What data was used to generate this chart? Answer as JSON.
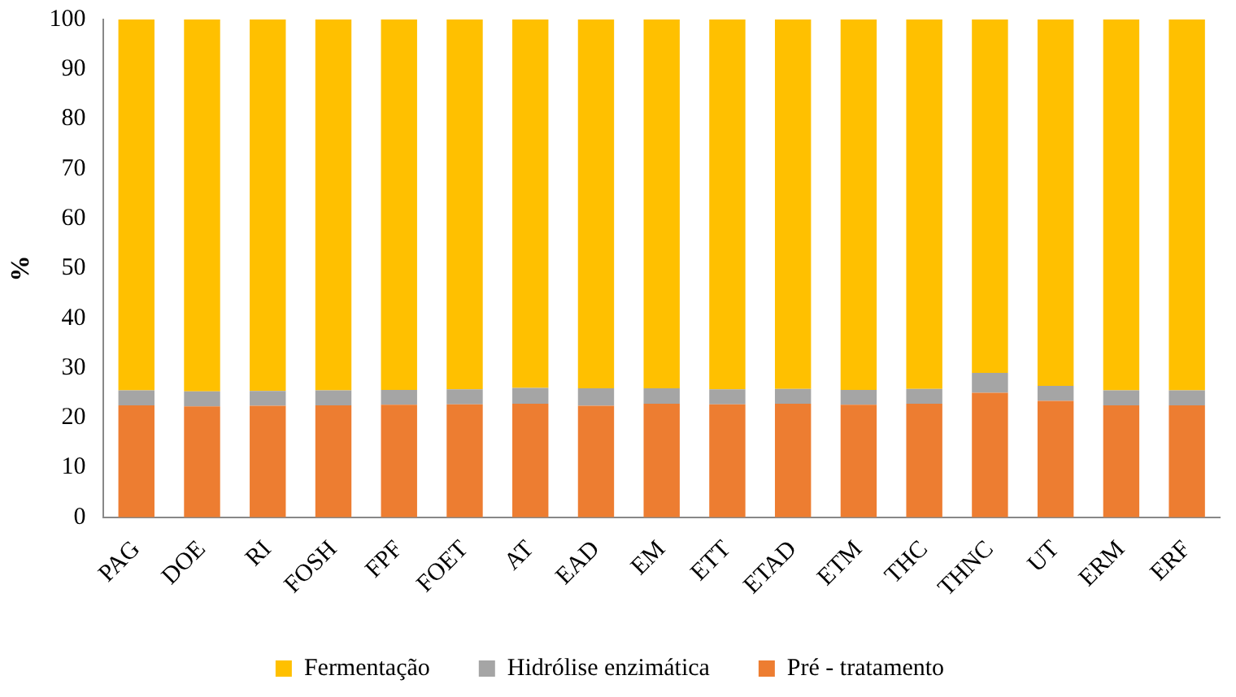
{
  "chart_data": {
    "type": "bar",
    "stacked": true,
    "ylabel": "%",
    "categories": [
      "PAG",
      "DOE",
      "RI",
      "FOSH",
      "FPF",
      "FOET",
      "AT",
      "EAD",
      "EM",
      "ETT",
      "ETAD",
      "ETM",
      "THC",
      "THNC",
      "UT",
      "ERM",
      "ERF"
    ],
    "series": [
      {
        "name": "Pré - tratamento",
        "color": "#ed7d31",
        "values": [
          22.5,
          22.3,
          22.4,
          22.5,
          22.6,
          22.7,
          22.8,
          22.4,
          22.8,
          22.7,
          22.8,
          22.6,
          22.8,
          25.0,
          23.4,
          22.5,
          22.5
        ]
      },
      {
        "name": "Hidrólise enzimática",
        "color": "#a5a5a5",
        "values": [
          3.0,
          3.0,
          3.0,
          3.0,
          3.0,
          3.0,
          3.2,
          3.5,
          3.1,
          3.0,
          3.0,
          3.0,
          3.0,
          4.0,
          3.0,
          3.0,
          3.0
        ]
      },
      {
        "name": "Fermentação",
        "color": "#ffc000",
        "values": [
          74.5,
          74.7,
          74.6,
          74.5,
          74.4,
          74.3,
          74.0,
          74.1,
          74.1,
          74.3,
          74.2,
          74.4,
          74.2,
          71.0,
          73.6,
          74.5,
          74.5
        ]
      }
    ],
    "ylim": [
      0,
      100
    ],
    "yticks": [
      0,
      10,
      20,
      30,
      40,
      50,
      60,
      70,
      80,
      90,
      100
    ],
    "grid": false,
    "legend": "bottom"
  }
}
